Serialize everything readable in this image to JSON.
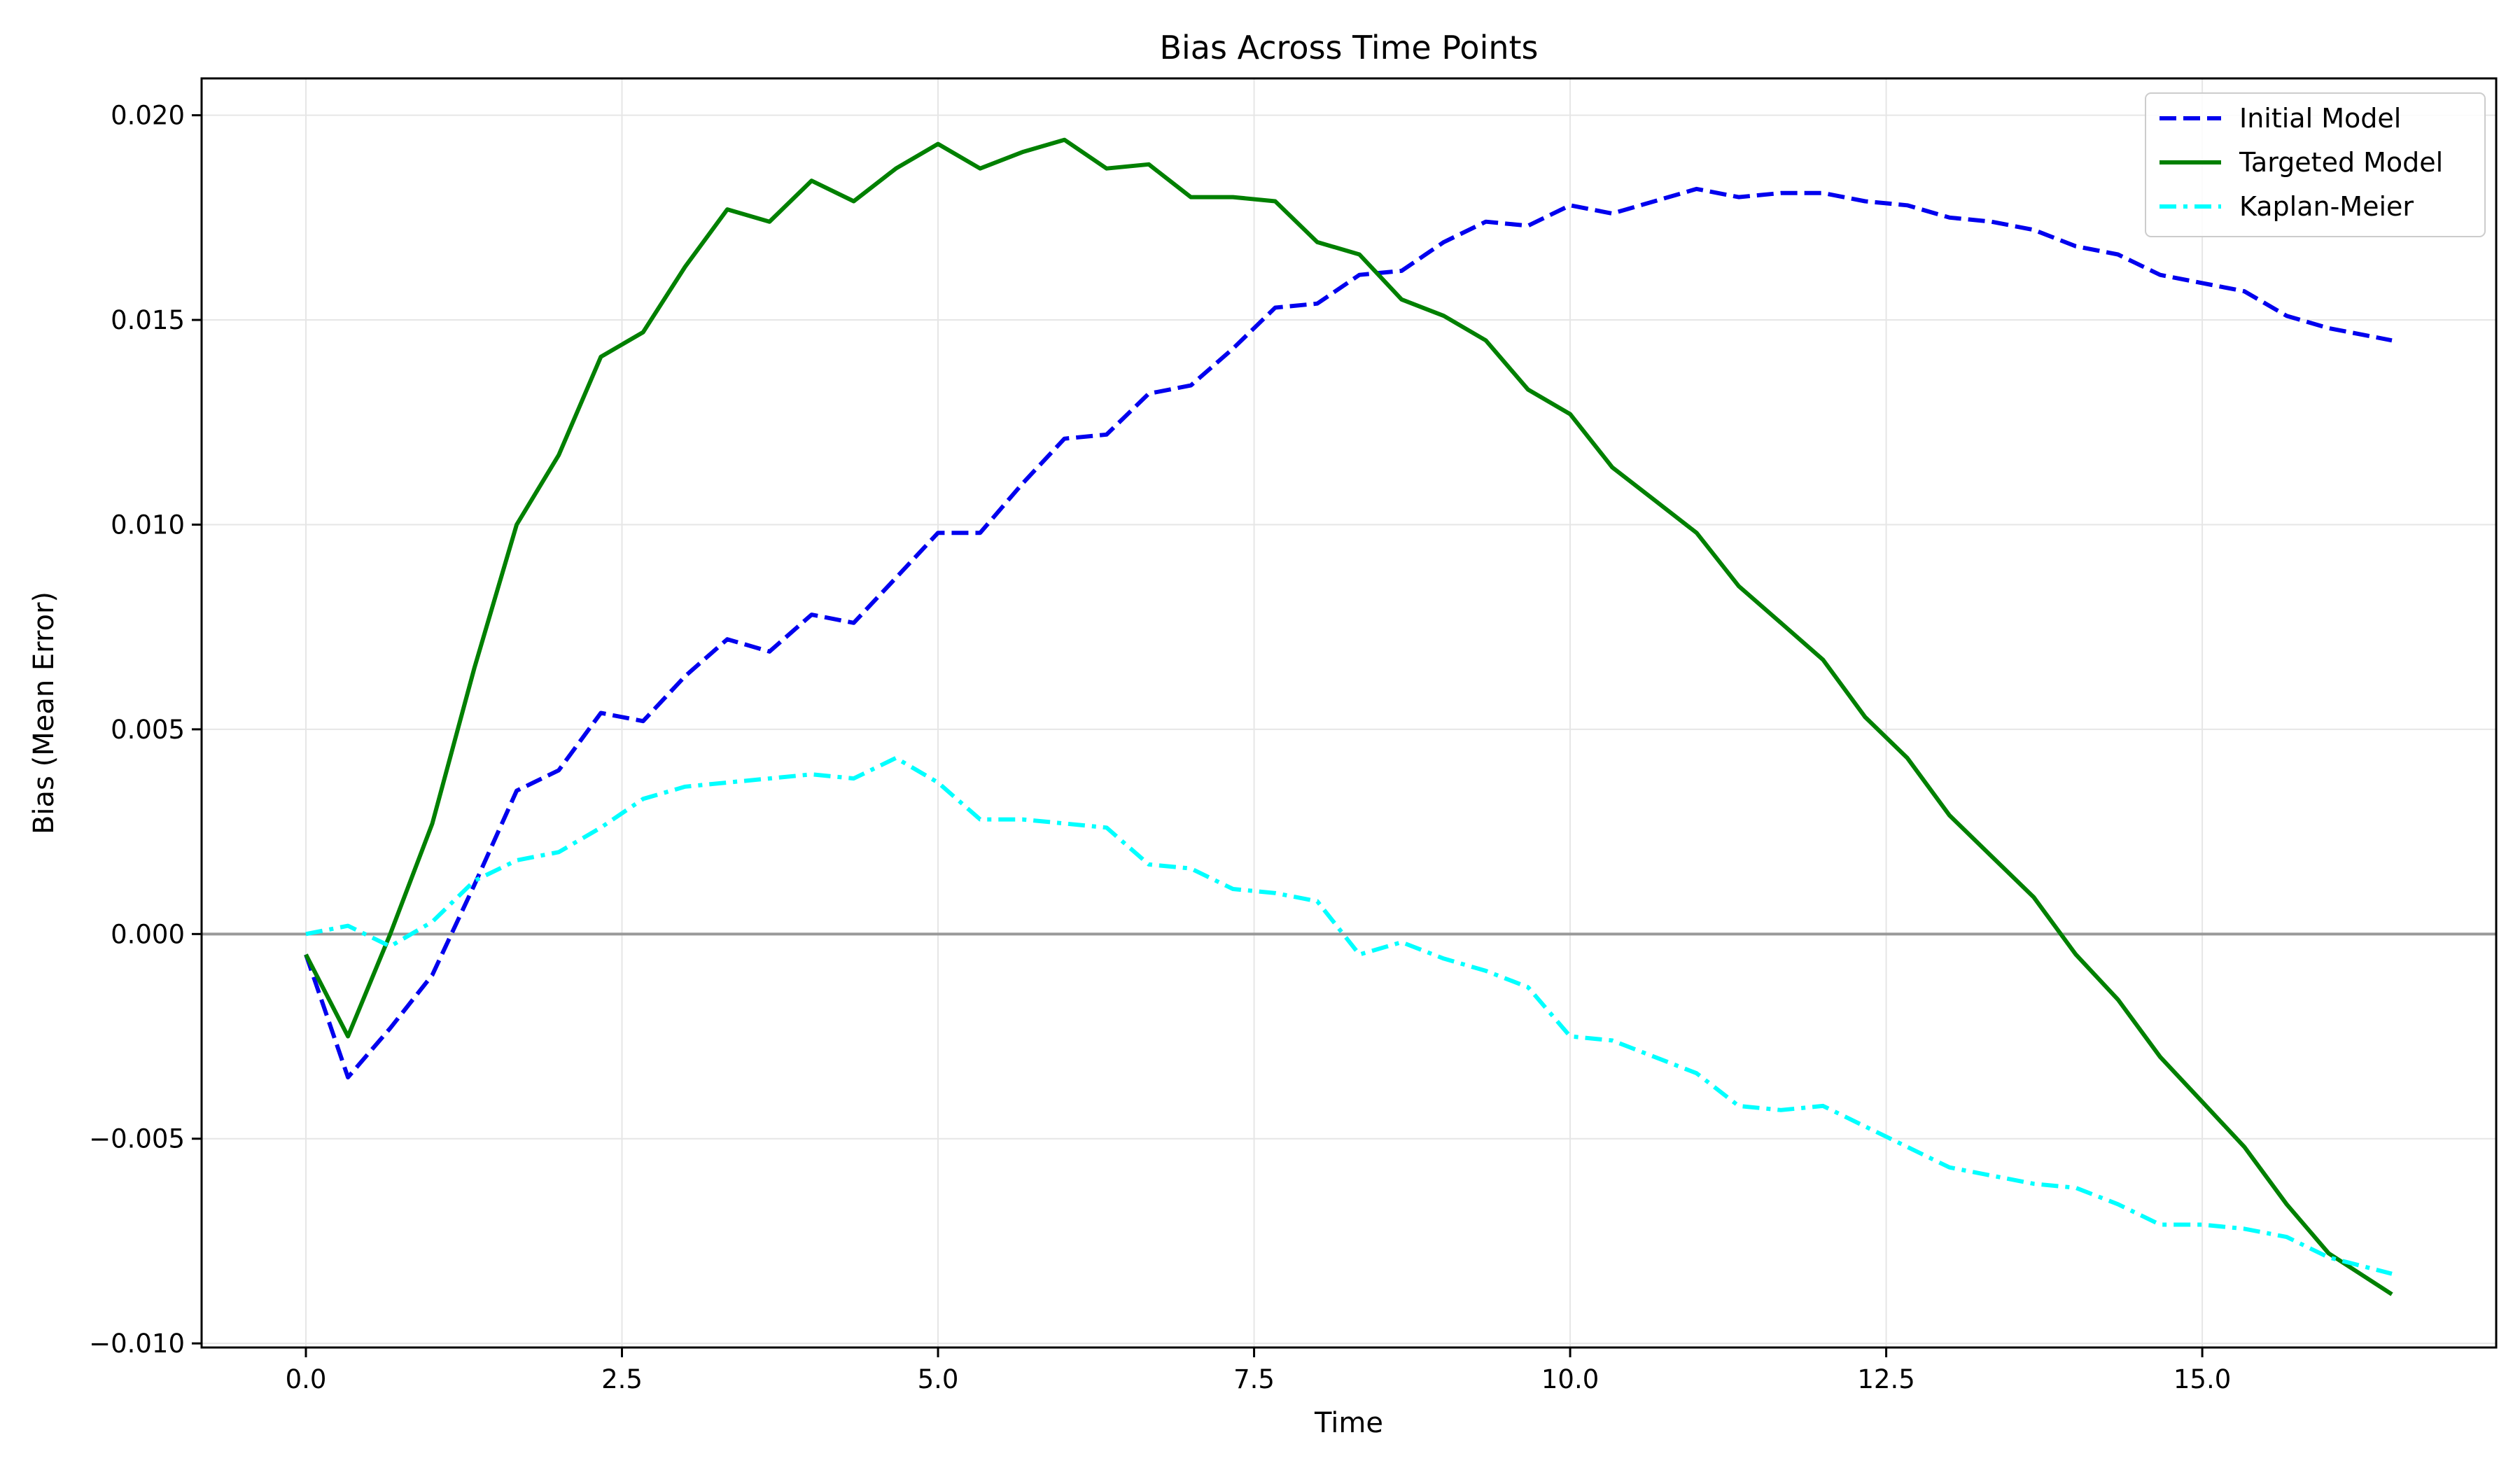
{
  "chart_data": {
    "type": "line",
    "title": "Bias Across Time Points",
    "xlabel": "Time",
    "ylabel": "Bias (Mean Error)",
    "xlim": [
      -0.825,
      17.325
    ],
    "ylim": [
      -0.0101,
      0.0209
    ],
    "xticks": [
      0.0,
      2.5,
      5.0,
      7.5,
      10.0,
      12.5,
      15.0
    ],
    "xtick_labels": [
      "0.0",
      "2.5",
      "5.0",
      "7.5",
      "10.0",
      "12.5",
      "15.0"
    ],
    "yticks": [
      -0.01,
      -0.005,
      0.0,
      0.005,
      0.01,
      0.015,
      0.02
    ],
    "ytick_labels": [
      "−0.010",
      "−0.005",
      "0.000",
      "0.005",
      "0.010",
      "0.015",
      "0.020"
    ],
    "grid": true,
    "zero_line": true,
    "legend_position": "top-right",
    "x": [
      0.0,
      0.333,
      0.667,
      1.0,
      1.333,
      1.667,
      2.0,
      2.333,
      2.667,
      3.0,
      3.333,
      3.667,
      4.0,
      4.333,
      4.667,
      5.0,
      5.333,
      5.667,
      6.0,
      6.333,
      6.667,
      7.0,
      7.333,
      7.667,
      8.0,
      8.333,
      8.667,
      9.0,
      9.333,
      9.667,
      10.0,
      10.333,
      10.667,
      11.0,
      11.333,
      11.667,
      12.0,
      12.333,
      12.667,
      13.0,
      13.333,
      13.667,
      14.0,
      14.333,
      14.667,
      15.0,
      15.333,
      15.667,
      16.0,
      16.5
    ],
    "series": [
      {
        "name": "Initial Model",
        "color": "#0000ee",
        "style": "dashed",
        "values": [
          -0.0005,
          -0.0035,
          -0.0023,
          -0.001,
          0.0012,
          0.0035,
          0.004,
          0.0054,
          0.0052,
          0.0063,
          0.0072,
          0.0069,
          0.0078,
          0.0076,
          0.0087,
          0.0098,
          0.0098,
          0.011,
          0.0121,
          0.0122,
          0.0132,
          0.0134,
          0.0143,
          0.0153,
          0.0154,
          0.0161,
          0.0162,
          0.0169,
          0.0174,
          0.0173,
          0.0178,
          0.0176,
          0.0179,
          0.0182,
          0.018,
          0.0181,
          0.0181,
          0.0179,
          0.0178,
          0.0175,
          0.0174,
          0.0172,
          0.0168,
          0.0166,
          0.0161,
          0.0159,
          0.0157,
          0.0151,
          0.0148,
          0.0145
        ]
      },
      {
        "name": "Targeted Model",
        "color": "#008000",
        "style": "solid",
        "values": [
          -0.0005,
          -0.0025,
          0.0,
          0.0027,
          0.0065,
          0.01,
          0.0117,
          0.0141,
          0.0147,
          0.0163,
          0.0177,
          0.0174,
          0.0184,
          0.0179,
          0.0187,
          0.0193,
          0.0187,
          0.0191,
          0.0194,
          0.0187,
          0.0188,
          0.018,
          0.018,
          0.0179,
          0.0169,
          0.0166,
          0.0155,
          0.0151,
          0.0145,
          0.0133,
          0.0127,
          0.0114,
          0.0106,
          0.0098,
          0.0085,
          0.0076,
          0.0067,
          0.0053,
          0.0043,
          0.0029,
          0.0019,
          0.0009,
          -0.0005,
          -0.0016,
          -0.003,
          -0.0041,
          -0.0052,
          -0.0066,
          -0.0078,
          -0.0088
        ]
      },
      {
        "name": "Kaplan-Meier",
        "color": "#00ffff",
        "style": "dashdot",
        "values": [
          0.0,
          0.0002,
          -0.0003,
          0.0003,
          0.0013,
          0.0018,
          0.002,
          0.0026,
          0.0033,
          0.0036,
          0.0037,
          0.0038,
          0.0039,
          0.0038,
          0.0043,
          0.0037,
          0.0028,
          0.0028,
          0.0027,
          0.0026,
          0.0017,
          0.0016,
          0.0011,
          0.001,
          0.0008,
          -0.0005,
          -0.0002,
          -0.0006,
          -0.0009,
          -0.0013,
          -0.0025,
          -0.0026,
          -0.003,
          -0.0034,
          -0.0042,
          -0.0043,
          -0.0042,
          -0.0047,
          -0.0052,
          -0.0057,
          -0.0059,
          -0.0061,
          -0.0062,
          -0.0066,
          -0.0071,
          -0.0071,
          -0.0072,
          -0.0074,
          -0.0079,
          -0.0083
        ]
      }
    ]
  }
}
